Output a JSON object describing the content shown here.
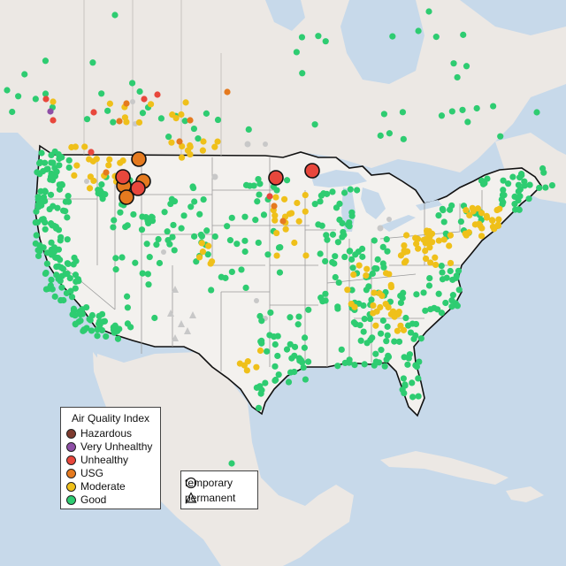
{
  "legend": {
    "title": "Air Quality Index",
    "items": [
      {
        "label": "Hazardous",
        "color": "#7e3b2f"
      },
      {
        "label": "Very Unhealthy",
        "color": "#8e4fa6"
      },
      {
        "label": "Unhealthy",
        "color": "#e8473c"
      },
      {
        "label": "USG",
        "color": "#e57a1f"
      },
      {
        "label": "Moderate",
        "color": "#efc01a"
      },
      {
        "label": "Good",
        "color": "#2ecc71"
      }
    ]
  },
  "monitor_types": {
    "items": [
      {
        "label": "temporary",
        "icon": "circle-outline-icon"
      },
      {
        "label": "permanent",
        "icon": "triangle-outline-icon"
      }
    ]
  },
  "colors": {
    "water": "#c7d9ea",
    "land": "#ece8e4",
    "us_land": "#f3f1ee",
    "state_border": "#9a9a9a",
    "country_border": "#111111",
    "inactive_site": "#c8c8c8"
  }
}
